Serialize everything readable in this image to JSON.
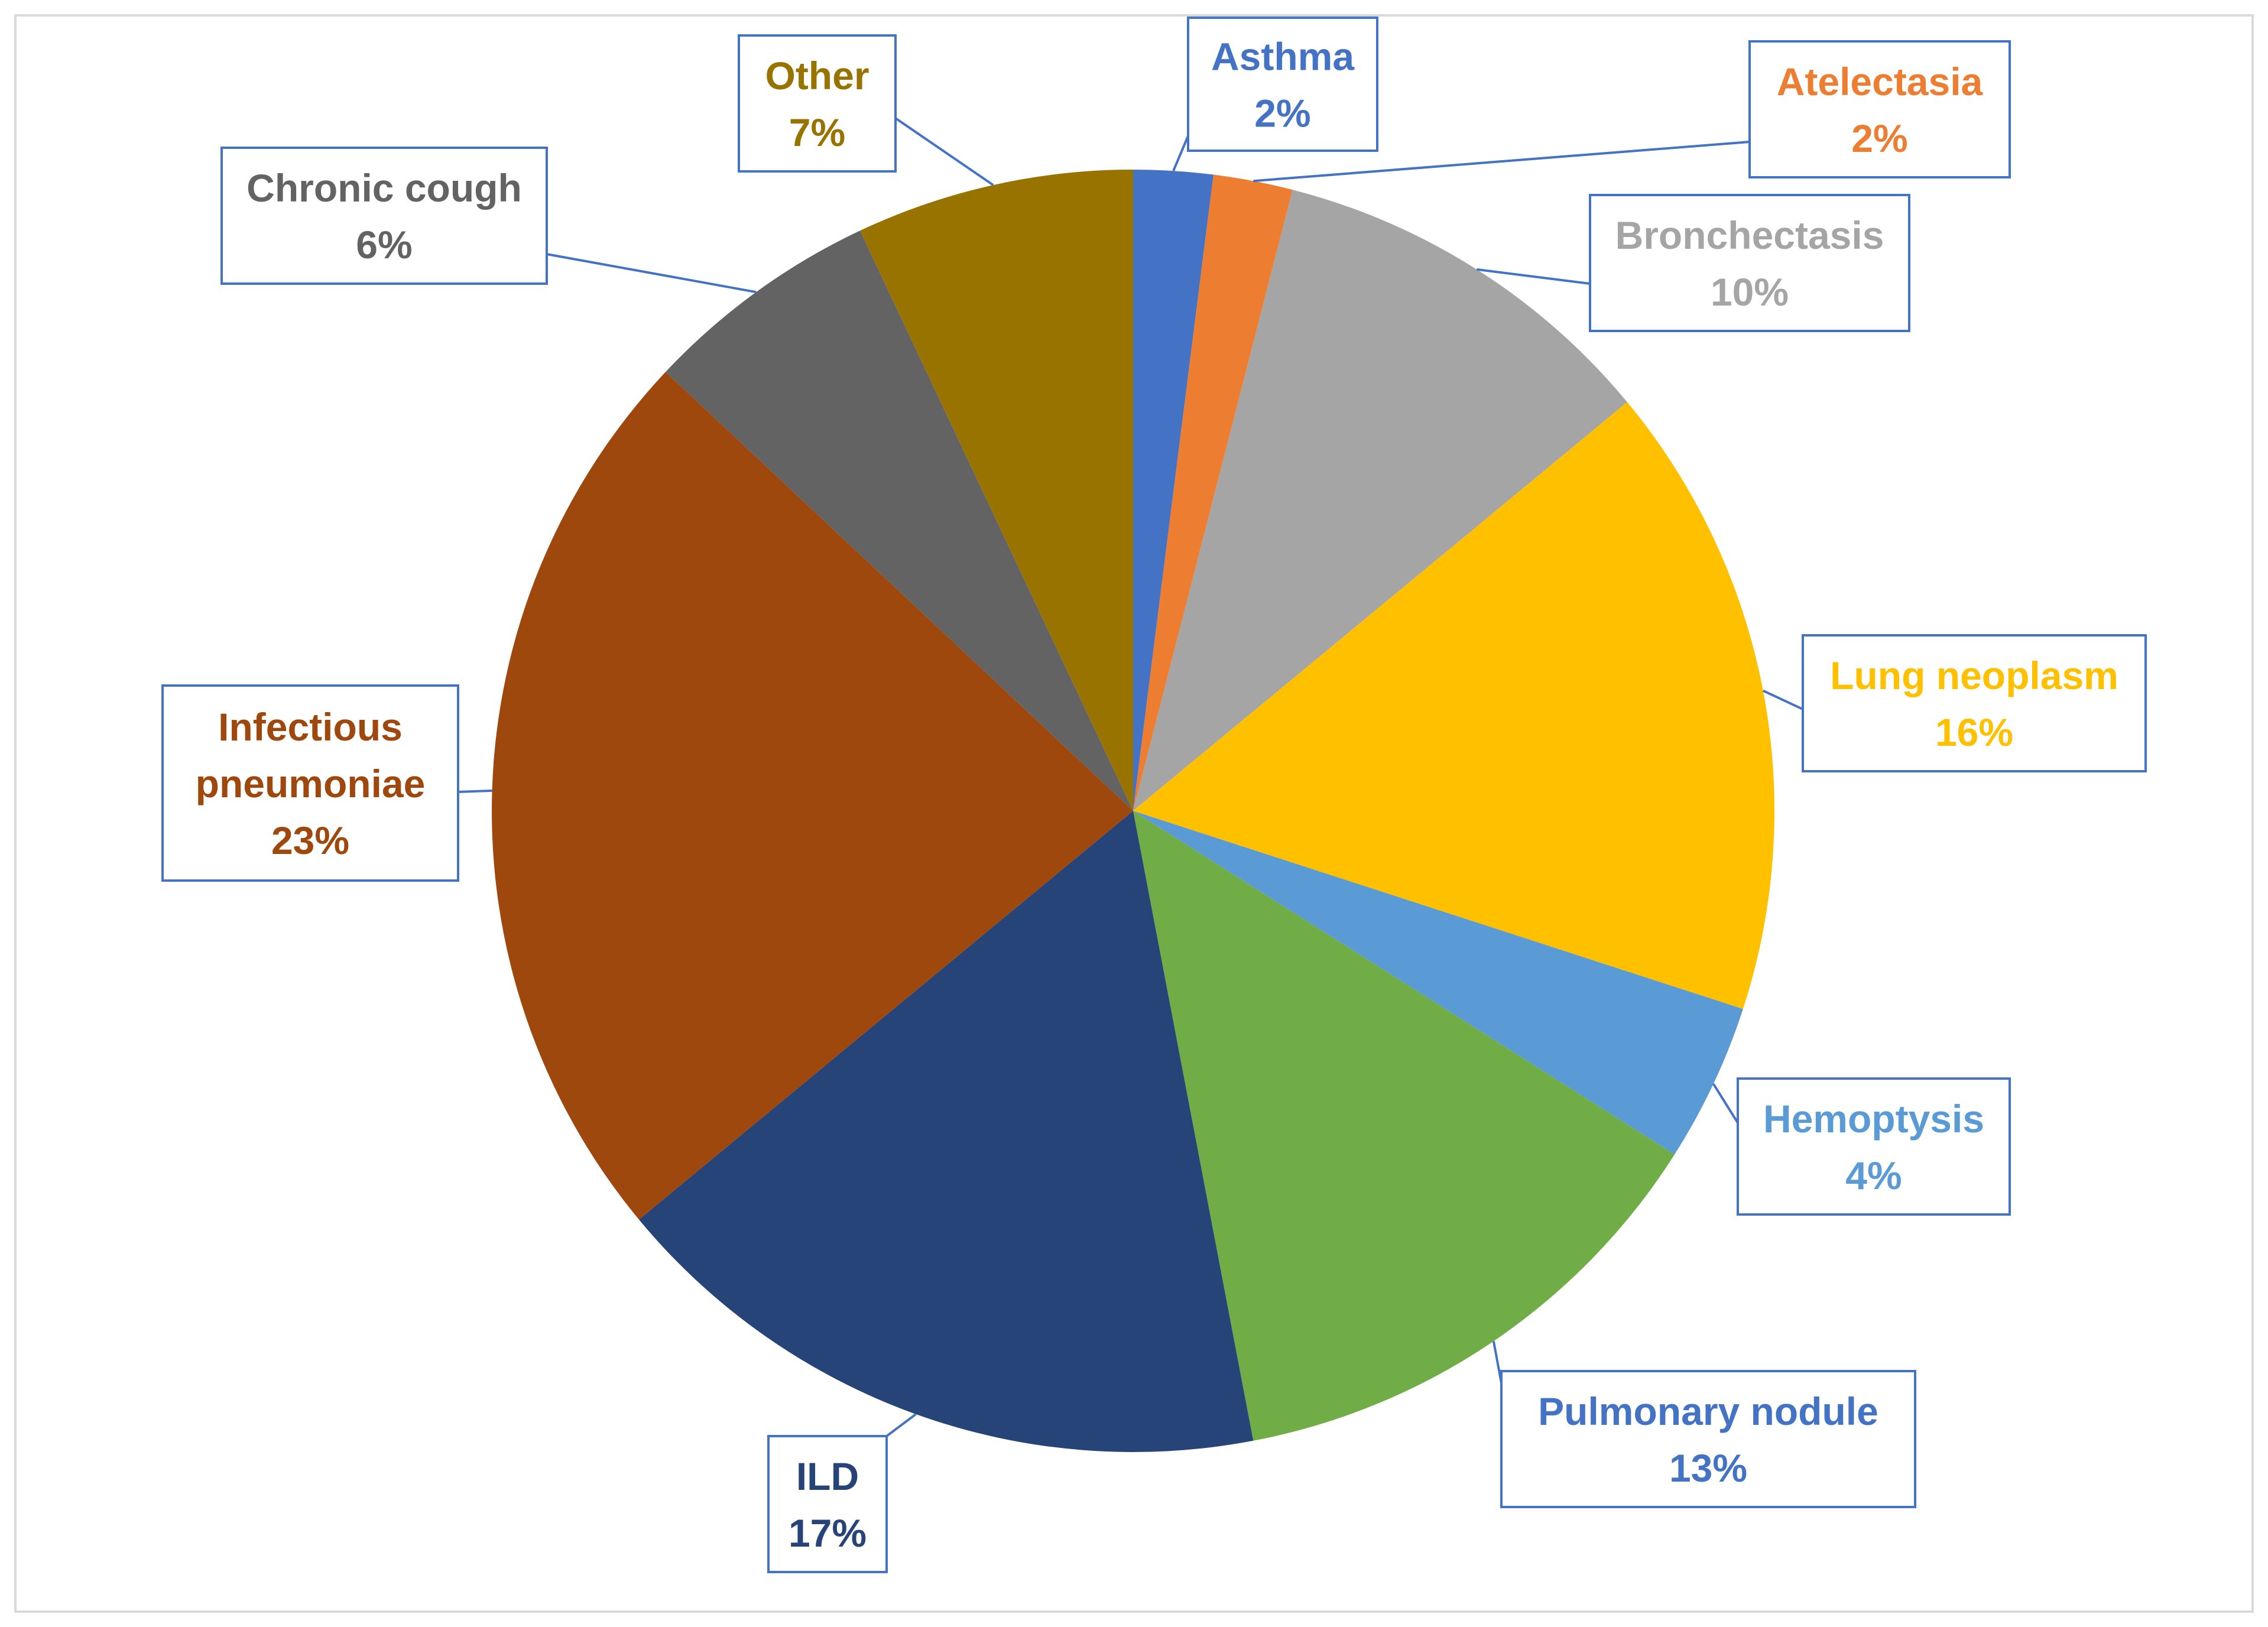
{
  "chart_data": {
    "type": "pie",
    "title": "",
    "start_angle_deg": 0,
    "direction": "clockwise",
    "slices": [
      {
        "label": "Asthma",
        "value": 2,
        "value_label": "2%",
        "color": "#4472C4",
        "label_color": "#4472C4"
      },
      {
        "label": "Atelectasia",
        "value": 2,
        "value_label": "2%",
        "color": "#ED7D31",
        "label_color": "#ED7D31"
      },
      {
        "label": "Bronchectasis",
        "value": 10,
        "value_label": "10%",
        "color": "#A5A5A5",
        "label_color": "#A5A5A5"
      },
      {
        "label": "Lung neoplasm",
        "value": 16,
        "value_label": "16%",
        "color": "#FFC000",
        "label_color": "#FFC000"
      },
      {
        "label": "Hemoptysis",
        "value": 4,
        "value_label": "4%",
        "color": "#5B9BD5",
        "label_color": "#5B9BD5"
      },
      {
        "label": "Pulmonary nodule",
        "value": 13,
        "value_label": "13%",
        "color": "#70AD47",
        "label_color": "#4472C4"
      },
      {
        "label": "ILD",
        "value": 17,
        "value_label": "17%",
        "color": "#264478",
        "label_color": "#264478"
      },
      {
        "label": "Infectious pneumoniae",
        "value": 23,
        "value_label": "23%",
        "color": "#9E480E",
        "label_color": "#9E480E"
      },
      {
        "label": "Chronic cough",
        "value": 6,
        "value_label": "6%",
        "color": "#636363",
        "label_color": "#636363"
      },
      {
        "label": "Other",
        "value": 7,
        "value_label": "7%",
        "color": "#997300",
        "label_color": "#997300"
      }
    ],
    "callout_border_color": "#4472C4",
    "legend": "none"
  }
}
